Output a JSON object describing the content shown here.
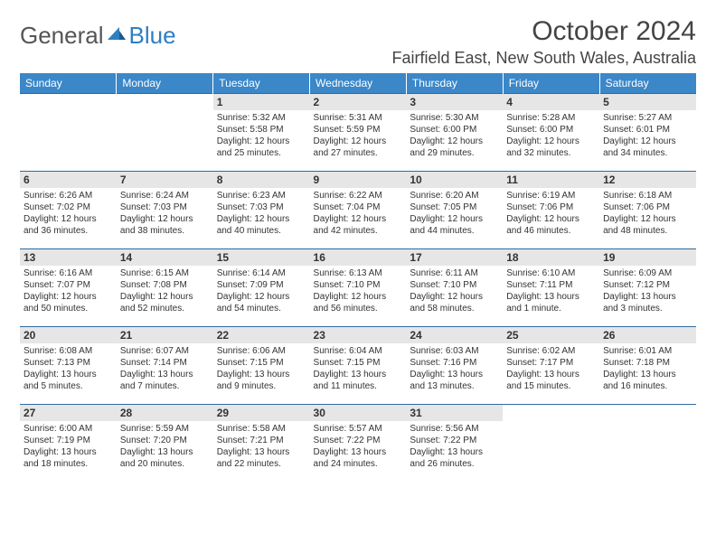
{
  "logo": {
    "general": "General",
    "blue": "Blue"
  },
  "title": "October 2024",
  "location": "Fairfield East, New South Wales, Australia",
  "day_headers": [
    "Sunday",
    "Monday",
    "Tuesday",
    "Wednesday",
    "Thursday",
    "Friday",
    "Saturday"
  ],
  "colors": {
    "header_bg": "#3b87c8",
    "header_text": "#ffffff",
    "row_border": "#2f6aa0",
    "daynum_bg": "#e6e6e6",
    "text": "#333333",
    "logo_gray": "#555555",
    "logo_blue": "#2f7ec2"
  },
  "typography": {
    "title_fontsize": 30,
    "location_fontsize": 18,
    "header_fontsize": 12,
    "daynum_fontsize": 12,
    "cell_fontsize": 10
  },
  "weeks": [
    [
      null,
      null,
      {
        "n": "1",
        "sr": "Sunrise: 5:32 AM",
        "ss": "Sunset: 5:58 PM",
        "dl": "Daylight: 12 hours and 25 minutes."
      },
      {
        "n": "2",
        "sr": "Sunrise: 5:31 AM",
        "ss": "Sunset: 5:59 PM",
        "dl": "Daylight: 12 hours and 27 minutes."
      },
      {
        "n": "3",
        "sr": "Sunrise: 5:30 AM",
        "ss": "Sunset: 6:00 PM",
        "dl": "Daylight: 12 hours and 29 minutes."
      },
      {
        "n": "4",
        "sr": "Sunrise: 5:28 AM",
        "ss": "Sunset: 6:00 PM",
        "dl": "Daylight: 12 hours and 32 minutes."
      },
      {
        "n": "5",
        "sr": "Sunrise: 5:27 AM",
        "ss": "Sunset: 6:01 PM",
        "dl": "Daylight: 12 hours and 34 minutes."
      }
    ],
    [
      {
        "n": "6",
        "sr": "Sunrise: 6:26 AM",
        "ss": "Sunset: 7:02 PM",
        "dl": "Daylight: 12 hours and 36 minutes."
      },
      {
        "n": "7",
        "sr": "Sunrise: 6:24 AM",
        "ss": "Sunset: 7:03 PM",
        "dl": "Daylight: 12 hours and 38 minutes."
      },
      {
        "n": "8",
        "sr": "Sunrise: 6:23 AM",
        "ss": "Sunset: 7:03 PM",
        "dl": "Daylight: 12 hours and 40 minutes."
      },
      {
        "n": "9",
        "sr": "Sunrise: 6:22 AM",
        "ss": "Sunset: 7:04 PM",
        "dl": "Daylight: 12 hours and 42 minutes."
      },
      {
        "n": "10",
        "sr": "Sunrise: 6:20 AM",
        "ss": "Sunset: 7:05 PM",
        "dl": "Daylight: 12 hours and 44 minutes."
      },
      {
        "n": "11",
        "sr": "Sunrise: 6:19 AM",
        "ss": "Sunset: 7:06 PM",
        "dl": "Daylight: 12 hours and 46 minutes."
      },
      {
        "n": "12",
        "sr": "Sunrise: 6:18 AM",
        "ss": "Sunset: 7:06 PM",
        "dl": "Daylight: 12 hours and 48 minutes."
      }
    ],
    [
      {
        "n": "13",
        "sr": "Sunrise: 6:16 AM",
        "ss": "Sunset: 7:07 PM",
        "dl": "Daylight: 12 hours and 50 minutes."
      },
      {
        "n": "14",
        "sr": "Sunrise: 6:15 AM",
        "ss": "Sunset: 7:08 PM",
        "dl": "Daylight: 12 hours and 52 minutes."
      },
      {
        "n": "15",
        "sr": "Sunrise: 6:14 AM",
        "ss": "Sunset: 7:09 PM",
        "dl": "Daylight: 12 hours and 54 minutes."
      },
      {
        "n": "16",
        "sr": "Sunrise: 6:13 AM",
        "ss": "Sunset: 7:10 PM",
        "dl": "Daylight: 12 hours and 56 minutes."
      },
      {
        "n": "17",
        "sr": "Sunrise: 6:11 AM",
        "ss": "Sunset: 7:10 PM",
        "dl": "Daylight: 12 hours and 58 minutes."
      },
      {
        "n": "18",
        "sr": "Sunrise: 6:10 AM",
        "ss": "Sunset: 7:11 PM",
        "dl": "Daylight: 13 hours and 1 minute."
      },
      {
        "n": "19",
        "sr": "Sunrise: 6:09 AM",
        "ss": "Sunset: 7:12 PM",
        "dl": "Daylight: 13 hours and 3 minutes."
      }
    ],
    [
      {
        "n": "20",
        "sr": "Sunrise: 6:08 AM",
        "ss": "Sunset: 7:13 PM",
        "dl": "Daylight: 13 hours and 5 minutes."
      },
      {
        "n": "21",
        "sr": "Sunrise: 6:07 AM",
        "ss": "Sunset: 7:14 PM",
        "dl": "Daylight: 13 hours and 7 minutes."
      },
      {
        "n": "22",
        "sr": "Sunrise: 6:06 AM",
        "ss": "Sunset: 7:15 PM",
        "dl": "Daylight: 13 hours and 9 minutes."
      },
      {
        "n": "23",
        "sr": "Sunrise: 6:04 AM",
        "ss": "Sunset: 7:15 PM",
        "dl": "Daylight: 13 hours and 11 minutes."
      },
      {
        "n": "24",
        "sr": "Sunrise: 6:03 AM",
        "ss": "Sunset: 7:16 PM",
        "dl": "Daylight: 13 hours and 13 minutes."
      },
      {
        "n": "25",
        "sr": "Sunrise: 6:02 AM",
        "ss": "Sunset: 7:17 PM",
        "dl": "Daylight: 13 hours and 15 minutes."
      },
      {
        "n": "26",
        "sr": "Sunrise: 6:01 AM",
        "ss": "Sunset: 7:18 PM",
        "dl": "Daylight: 13 hours and 16 minutes."
      }
    ],
    [
      {
        "n": "27",
        "sr": "Sunrise: 6:00 AM",
        "ss": "Sunset: 7:19 PM",
        "dl": "Daylight: 13 hours and 18 minutes."
      },
      {
        "n": "28",
        "sr": "Sunrise: 5:59 AM",
        "ss": "Sunset: 7:20 PM",
        "dl": "Daylight: 13 hours and 20 minutes."
      },
      {
        "n": "29",
        "sr": "Sunrise: 5:58 AM",
        "ss": "Sunset: 7:21 PM",
        "dl": "Daylight: 13 hours and 22 minutes."
      },
      {
        "n": "30",
        "sr": "Sunrise: 5:57 AM",
        "ss": "Sunset: 7:22 PM",
        "dl": "Daylight: 13 hours and 24 minutes."
      },
      {
        "n": "31",
        "sr": "Sunrise: 5:56 AM",
        "ss": "Sunset: 7:22 PM",
        "dl": "Daylight: 13 hours and 26 minutes."
      },
      null,
      null
    ]
  ]
}
